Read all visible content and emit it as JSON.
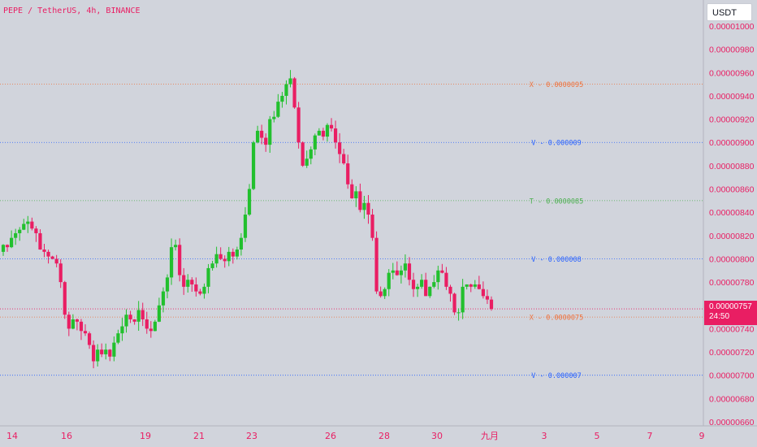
{
  "header": {
    "symbol_line": "PEPE / TetherUS, 4h, BINANCE"
  },
  "currency_button": {
    "label": "USDT"
  },
  "last_price": {
    "value": "0.00000757",
    "countdown": "24:50"
  },
  "colors": {
    "up": "#22c02e",
    "down": "#e91e63",
    "background": "#d1d4dc",
    "axis_text": "#e91e63"
  },
  "chart_data": {
    "type": "candlestick",
    "y_ticks": [
      "0.00001000",
      "0.00000980",
      "0.00000960",
      "0.00000940",
      "0.00000920",
      "0.00000900",
      "0.00000880",
      "0.00000860",
      "0.00000840",
      "0.00000820",
      "0.00000800",
      "0.00000780",
      "0.00000760",
      "0.00000740",
      "0.00000720",
      "0.00000700",
      "0.00000680",
      "0.00000660"
    ],
    "x_ticks": [
      "14",
      "16",
      "19",
      "21",
      "23",
      "26",
      "28",
      "30",
      "九月",
      "3",
      "5",
      "7",
      "9"
    ],
    "ylim": [
      6.58e-06,
      1.004e-05
    ],
    "horizontal_levels": [
      {
        "label": "X - 0.0000095",
        "value": 9.5e-06,
        "color": "#f0713a"
      },
      {
        "label": "V - 0.000009",
        "value": 9e-06,
        "color": "#2962ff"
      },
      {
        "label": "T - 0.0000085",
        "value": 8.5e-06,
        "color": "#4caf50"
      },
      {
        "label": "V - 0.000008",
        "value": 8e-06,
        "color": "#2962ff"
      },
      {
        "label": "X - 0.0000075",
        "value": 7.5e-06,
        "color": "#f0713a"
      },
      {
        "label": "V - 0.000007",
        "value": 7e-06,
        "color": "#2962ff"
      }
    ],
    "closes": [
      812,
      810,
      818,
      822,
      825,
      830,
      832,
      826,
      822,
      808,
      806,
      802,
      800,
      796,
      780,
      752,
      740,
      748,
      746,
      738,
      736,
      726,
      712,
      722,
      718,
      722,
      716,
      728,
      736,
      742,
      752,
      748,
      746,
      756,
      748,
      740,
      738,
      746,
      760,
      772,
      784,
      810,
      812,
      786,
      776,
      782,
      778,
      772,
      770,
      776,
      792,
      796,
      804,
      800,
      798,
      806,
      802,
      808,
      818,
      838,
      860,
      900,
      910,
      904,
      898,
      920,
      922,
      935,
      940,
      950,
      955,
      930,
      900,
      880,
      886,
      894,
      906,
      910,
      905,
      915,
      912,
      900,
      890,
      882,
      864,
      852,
      858,
      842,
      848,
      838,
      818,
      772,
      768,
      774,
      788,
      790,
      786,
      790,
      796,
      782,
      774,
      776,
      782,
      768,
      776,
      780,
      790,
      788,
      776,
      770,
      754,
      754,
      776,
      778,
      776,
      778,
      774,
      768,
      765,
      757
    ],
    "ranges": [
      [
        0.6,
        3.5
      ],
      [
        0.4,
        4.0
      ],
      [
        6.4,
        0.8
      ],
      [
        3.8,
        6.0
      ],
      [
        2.3,
        6.5
      ],
      [
        4.4,
        0.3
      ],
      [
        4.8,
        7.9
      ],
      [
        3.4,
        1.6
      ],
      [
        2.1,
        7.5
      ],
      [
        3.4,
        0.2
      ],
      [
        4.9,
        4.6
      ],
      [
        1.9,
        6.0
      ],
      [
        0.6,
        0.5
      ],
      [
        3.3,
        3.3
      ],
      [
        3.6,
        5.0
      ],
      [
        5.8,
        0.3
      ],
      [
        2.6,
        6.4
      ],
      [
        4.4,
        0.5
      ],
      [
        0.7,
        7.4
      ],
      [
        2.4,
        7.7
      ],
      [
        5.8,
        2.2
      ],
      [
        7.4,
        4.7
      ],
      [
        3.9,
        6.0
      ],
      [
        4.7,
        4.5
      ],
      [
        5.3,
        2.4
      ],
      [
        5.2,
        4.4
      ],
      [
        0.5,
        3.9
      ],
      [
        5.3,
        4.0
      ],
      [
        3.1,
        1.3
      ],
      [
        7.3,
        6.5
      ],
      [
        4.7,
        5.4
      ],
      [
        3.3,
        3.1
      ],
      [
        0.2,
        2.6
      ],
      [
        7.8,
        7.8
      ],
      [
        6.3,
        5.7
      ],
      [
        6.5,
        4.4
      ],
      [
        6.5,
        5.8
      ],
      [
        1.6,
        0.3
      ],
      [
        6.6,
        0.3
      ],
      [
        3.5,
        6.0
      ],
      [
        2.7,
        5.9
      ],
      [
        7.5,
        6.4
      ],
      [
        4.5,
        2.8
      ],
      [
        5.6,
        5.4
      ],
      [
        6.0,
        7.0
      ],
      [
        4.9,
        5.0
      ],
      [
        2.2,
        6.3
      ],
      [
        6.0,
        4.4
      ],
      [
        2.2,
        1.4
      ],
      [
        2.8,
        4.2
      ],
      [
        3.5,
        5.6
      ],
      [
        2.3,
        2.1
      ],
      [
        6.4,
        3.5
      ],
      [
        5.9,
        1.1
      ],
      [
        3.0,
        5.6
      ],
      [
        4.2,
        4.3
      ],
      [
        2.9,
        6.1
      ],
      [
        2.4,
        2.6
      ],
      [
        4.0,
        5.2
      ],
      [
        6.4,
        3.6
      ],
      [
        4.3,
        1.2
      ],
      [
        1.4,
        1.0
      ],
      [
        4.3,
        0.8
      ],
      [
        5.2,
        5.6
      ],
      [
        3.8,
        6.1
      ],
      [
        2.6,
        6.9
      ],
      [
        5.0,
        2.8
      ],
      [
        6.5,
        0.9
      ],
      [
        3.4,
        5.2
      ],
      [
        3.3,
        7.4
      ],
      [
        7.2,
        2.7
      ],
      [
        1.1,
        1.1
      ],
      [
        4.8,
        5.3
      ],
      [
        6.2,
        2.6
      ],
      [
        7.0,
        2.0
      ],
      [
        2.5,
        4.8
      ],
      [
        1.6,
        5.0
      ],
      [
        2.2,
        0.2
      ],
      [
        2.6,
        3.2
      ],
      [
        1.5,
        4.3
      ],
      [
        5.9,
        2.6
      ],
      [
        6.7,
        5.3
      ],
      [
        7.9,
        7.8
      ],
      [
        4.5,
        1.2
      ],
      [
        7.5,
        3.8
      ],
      [
        4.3,
        0.4
      ],
      [
        4.4,
        7.5
      ],
      [
        6.6,
        2.1
      ],
      [
        6.1,
        7.6
      ],
      [
        6.8,
        7.9
      ],
      [
        4.9,
        2.5
      ],
      [
        5.6,
        2.2
      ],
      [
        4.2,
        1.3
      ],
      [
        2.1,
        3.4
      ],
      [
        0.4,
        4.5
      ],
      [
        6.5,
        5.6
      ],
      [
        7.8,
        0.5
      ],
      [
        4.2,
        7.2
      ],
      [
        7.8,
        6.1
      ],
      [
        5.5,
        4.8
      ],
      [
        6.0,
        6.7
      ],
      [
        2.6,
        6.7
      ],
      [
        4.9,
        1.7
      ],
      [
        3.0,
        0.1
      ],
      [
        0.3,
        1.7
      ],
      [
        6.1,
        1.3
      ],
      [
        4.1,
        6.4
      ],
      [
        5.6,
        0.5
      ],
      [
        2.5,
        6.4
      ],
      [
        1.7,
        6.7
      ],
      [
        0.9,
        2.3
      ],
      [
        3.5,
        7.1
      ],
      [
        6.8,
        5.8
      ],
      [
        0.1,
        2.3
      ],
      [
        0.7,
        4.6
      ],
      [
        3.8,
        1.8
      ],
      [
        7.4,
        0.3
      ],
      [
        6.6,
        2.1
      ],
      [
        5.6,
        3.8
      ],
      [
        2.7,
        1.5
      ]
    ],
    "overrides": [
      [
        15,
        1.0,
        3.6
      ],
      [
        21,
        1.6,
        3.3
      ],
      [
        73,
        0.9,
        1.0
      ],
      [
        94,
        3.2,
        6.1
      ],
      [
        93,
        1.5,
        2.5
      ],
      [
        103,
        6.0,
        0.0
      ],
      [
        108,
        5.0,
        2.8
      ]
    ]
  }
}
